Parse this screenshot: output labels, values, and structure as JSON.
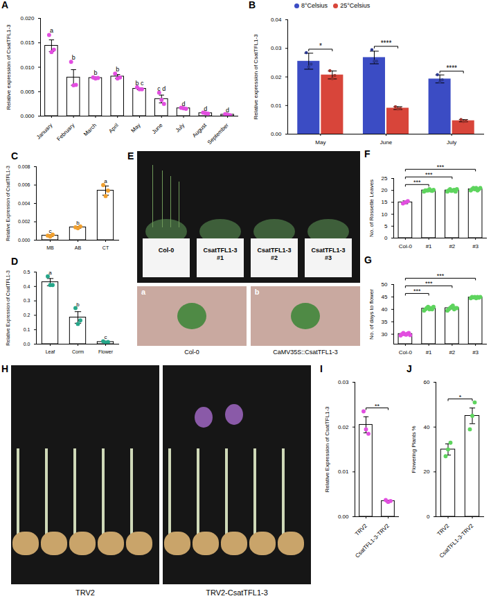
{
  "chart_data": [
    {
      "panel": "A",
      "type": "bar",
      "y_label": "Relative expression of CsatTFL1-3",
      "categories": [
        "January",
        "February",
        "March",
        "April",
        "May",
        "June",
        "July",
        "August",
        "September"
      ],
      "values": [
        0.0144,
        0.0079,
        0.0078,
        0.0081,
        0.0056,
        0.0035,
        0.0016,
        0.0006,
        0.0003
      ],
      "errors": [
        0.0012,
        0.0016,
        0.0002,
        0.0004,
        0.0002,
        0.0008,
        0.0001,
        0.0001,
        0.0001
      ],
      "points": [
        [
          0.0166,
          0.0131,
          0.0136
        ],
        [
          0.0111,
          0.0063,
          0.0064
        ],
        [
          0.0079,
          0.0077,
          0.0078
        ],
        [
          0.0087,
          0.0077,
          0.0079
        ],
        [
          0.0059,
          0.0055,
          0.0055
        ],
        [
          0.0048,
          0.0033,
          0.0025
        ],
        [
          0.0017,
          0.0016,
          0.0015
        ],
        [
          0.0007,
          0.0006,
          0.0005
        ],
        [
          0.0004,
          0.0003,
          0.0002
        ]
      ],
      "point_color": "#e24ee0",
      "letters": [
        "a",
        "b",
        "b",
        "b",
        "b c",
        "c d",
        "d",
        "d",
        "d"
      ],
      "ylim": [
        0,
        0.02
      ],
      "yticks": [
        {
          "value": 0,
          "label": "0.000"
        },
        0.005,
        {
          "value": 0.01,
          "label": "0.010"
        },
        0.015,
        {
          "value": 0.02,
          "label": "0.020"
        }
      ]
    },
    {
      "panel": "B",
      "type": "bar",
      "y_label": "Relative expression of CsatTFL1-3",
      "categories": [
        "May",
        "June",
        "July"
      ],
      "series": [
        {
          "name": "8°Celsius",
          "color": "#3b4cc4",
          "values": [
            0.0255,
            0.0268,
            0.0193
          ],
          "errors": [
            0.0028,
            0.0022,
            0.0014
          ],
          "points": [
            [
              0.0285,
              0.0235,
              0.0245
            ],
            [
              0.0295,
              0.0255,
              0.0255
            ],
            [
              0.0208,
              0.0182,
              0.019
            ]
          ]
        },
        {
          "name": "25°Celsius",
          "color": "#d8453a",
          "values": [
            0.0207,
            0.0091,
            0.0047
          ],
          "errors": [
            0.0014,
            0.0005,
            0.0004
          ],
          "points": [
            [
              0.0222,
              0.0194,
              0.0205
            ],
            [
              0.0096,
              0.0088,
              0.009
            ],
            [
              0.0051,
              0.0044,
              0.0046
            ]
          ]
        }
      ],
      "significance": [
        "*",
        "****",
        "****"
      ],
      "legend": "top",
      "ylim": [
        0,
        0.04
      ],
      "yticks": [
        {
          "value": 0,
          "label": "0.00"
        },
        0.01,
        0.02,
        0.03,
        0.04
      ]
    },
    {
      "panel": "C",
      "type": "bar",
      "y_label": "Relative Expression of CsatTFL1-3",
      "categories": [
        "MB",
        "AB",
        "CT"
      ],
      "values": [
        0.0005,
        0.0014,
        0.0054
      ],
      "errors": [
        0.0001,
        0.0001,
        0.0005
      ],
      "points": [
        [
          0.0005,
          0.0004,
          0.0006
        ],
        [
          0.0014,
          0.0013,
          0.0015
        ],
        [
          0.006,
          0.0048,
          0.0054
        ]
      ],
      "point_color": "#f0a030",
      "letters": [
        "c",
        "b",
        "a"
      ],
      "ylim": [
        0,
        0.008
      ],
      "yticks": [
        {
          "value": 0,
          "label": "0.000"
        },
        0.002,
        0.004,
        0.006,
        0.008
      ]
    },
    {
      "panel": "D",
      "type": "bar",
      "y_label": "Relative Expression of CsatTFL1-3",
      "categories": [
        "Leaf",
        "Corm",
        "Flower"
      ],
      "values": [
        0.43,
        0.185,
        0.015
      ],
      "errors": [
        0.025,
        0.04,
        0.005
      ],
      "points": [
        [
          0.47,
          0.41,
          0.41
        ],
        [
          0.25,
          0.14,
          0.165
        ],
        [
          0.02,
          0.01,
          0.015
        ]
      ],
      "point_color": "#26a68a",
      "letters": [
        "a",
        "b",
        "c"
      ],
      "ylim": [
        0,
        0.5
      ],
      "yticks": [
        {
          "value": 0,
          "label": "0.0"
        },
        0.1,
        0.2,
        0.3,
        0.4,
        0.5
      ]
    },
    {
      "panel": "F",
      "type": "bar",
      "y_label": "No. of Rossette Leaves",
      "categories": [
        "Col-0",
        "#1",
        "#2",
        "#3"
      ],
      "values": [
        15,
        20,
        20,
        20.5
      ],
      "errors": [
        0.6,
        0.3,
        0.4,
        0.4
      ],
      "points": [
        [
          14.5,
          15,
          15.5
        ],
        [
          19.5,
          20,
          20,
          20,
          20.5,
          20,
          19.8,
          20.2
        ],
        [
          19.5,
          20,
          20.5,
          19.8,
          20,
          20.2,
          19.5,
          20.5
        ],
        [
          20,
          20.5,
          21,
          20.5,
          21,
          20,
          20.5,
          21
        ]
      ],
      "point_colors": [
        "#e24ee0",
        "#5ed45e",
        "#5ed45e",
        "#5ed45e"
      ],
      "comparisons": [
        {
          "from": "Col-0",
          "to": "#1",
          "label": "***"
        },
        {
          "from": "Col-0",
          "to": "#2",
          "label": "***"
        },
        {
          "from": "Col-0",
          "to": "#3",
          "label": "***"
        }
      ],
      "ylim": [
        0,
        25
      ],
      "yticks": [
        0,
        5,
        10,
        15,
        20,
        25
      ]
    },
    {
      "panel": "G",
      "type": "bar",
      "y_label": "No. of days to flower",
      "categories": [
        "Col-0",
        "#1",
        "#2",
        "#3"
      ],
      "values": [
        30.1,
        40.3,
        40.5,
        44.8
      ],
      "errors": [
        0.3,
        0.3,
        0.35,
        0.2
      ],
      "points": [
        [
          29.5,
          30,
          30.5,
          30,
          29.8,
          30.2,
          30.5,
          29.6
        ],
        [
          39.5,
          40,
          40.5,
          41,
          40,
          40.5,
          40,
          41
        ],
        [
          39.5,
          40,
          40.5,
          41,
          41.5,
          40,
          40.5,
          40.5
        ],
        [
          44.5,
          45,
          44.8,
          45,
          44.5,
          45,
          44.7,
          45
        ]
      ],
      "point_colors": [
        "#e24ee0",
        "#5ed45e",
        "#5ed45e",
        "#5ed45e"
      ],
      "comparisons": [
        {
          "from": "Col-0",
          "to": "#1",
          "label": "***"
        },
        {
          "from": "Col-0",
          "to": "#2",
          "label": "***"
        },
        {
          "from": "Col-0",
          "to": "#3",
          "label": "***"
        }
      ],
      "ylim": [
        26,
        50
      ],
      "yticks": [
        30,
        35,
        40,
        45,
        50
      ]
    },
    {
      "panel": "I",
      "type": "bar",
      "y_label": "Relative Expression of CsatTFL1-3",
      "categories": [
        "TRV2",
        "CsatTFL1-3-TRV2"
      ],
      "values": [
        0.0205,
        0.0035
      ],
      "errors": [
        0.0018,
        0.0002
      ],
      "points": [
        [
          0.0235,
          0.0195,
          0.0185
        ],
        [
          0.0037,
          0.0033,
          0.0035
        ]
      ],
      "point_color": "#e24ee0",
      "comparisons": [
        {
          "from": "TRV2",
          "to": "CsatTFL1-3-TRV2",
          "label": "**"
        }
      ],
      "ylim": [
        0,
        0.03
      ],
      "yticks": [
        {
          "value": 0,
          "label": "0.00"
        },
        0.01,
        0.02,
        0.03
      ]
    },
    {
      "panel": "J",
      "type": "bar",
      "y_label": "Flowering Plants %",
      "categories": [
        "TRV2",
        "CsatTFL1-3-TRV2"
      ],
      "values": [
        30,
        45
      ],
      "errors": [
        2.5,
        3.5
      ],
      "points": [
        [
          27,
          30,
          33
        ],
        [
          39,
          45,
          51
        ]
      ],
      "point_color": "#5ed45e",
      "comparisons": [
        {
          "from": "TRV2",
          "to": "CsatTFL1-3-TRV2",
          "label": "*"
        }
      ],
      "ylim": [
        0,
        60
      ],
      "yticks": [
        0,
        20,
        40,
        60
      ]
    }
  ],
  "photos": [
    {
      "panel": "E",
      "pot_labels": [
        "Col-0",
        "CsatTFL1-3 #1",
        "CsatTFL1-3 #2",
        "CsatTFL1-3 #3"
      ],
      "inset_letters": [
        "a",
        "b"
      ],
      "inset_captions": [
        "Col-0",
        "CaMV35S::CsatTFL1-3"
      ]
    },
    {
      "panel": "H",
      "captions": [
        "TRV2",
        "TRV2-CsatTFL1-3"
      ]
    }
  ]
}
